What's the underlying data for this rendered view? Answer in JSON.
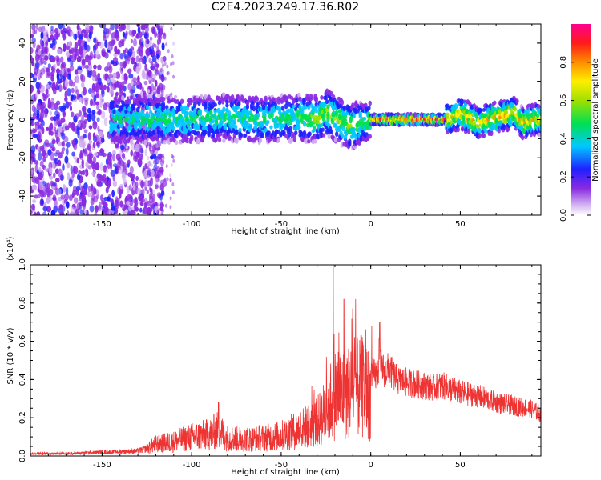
{
  "figure": {
    "title": "C2E4.2023.249.17.36.R02"
  },
  "chart_data": [
    {
      "type": "heatmap",
      "xlabel": "Height of straight line (km)",
      "ylabel": "Frequency (Hz)",
      "xlim": [
        -190,
        95
      ],
      "ylim": [
        -50,
        50
      ],
      "xticks": [
        -150,
        -100,
        -50,
        0,
        50
      ],
      "yticks": [
        -40,
        -20,
        0,
        20,
        40
      ],
      "colorbar": {
        "label": "Normalized spectral amplitude",
        "range": [
          0.0,
          1.0
        ],
        "ticks": [
          0.0,
          0.2,
          0.4,
          0.6,
          0.8
        ],
        "colormap": "rainbow: white-violet-blue-cyan-green-yellow-orange-red-magenta"
      },
      "ridge": {
        "x": [
          -145,
          -130,
          -120,
          -100,
          -80,
          -60,
          -40,
          -30,
          -25,
          -20,
          -15,
          -10,
          -5,
          0,
          10,
          20,
          30,
          40,
          45,
          50,
          55,
          60,
          65,
          70,
          75,
          80,
          85,
          90
        ],
        "y": [
          0,
          0,
          0,
          0,
          1,
          0,
          1,
          0,
          4,
          1,
          -2,
          -3,
          -2,
          0,
          0,
          0,
          0,
          0,
          1,
          3,
          1,
          -2,
          0,
          1,
          2,
          4,
          -2,
          0
        ]
      }
    },
    {
      "type": "line",
      "xlabel": "Height of straight line (km)",
      "ylabel": "SNR (10 * v/v)",
      "yscale_note": "(x10⁴)",
      "xlim": [
        -190,
        95
      ],
      "ylim": [
        0.0,
        1.0
      ],
      "xticks": [
        -150,
        -100,
        -50,
        0,
        50
      ],
      "yticks": [
        0.0,
        0.2,
        0.4,
        0.6,
        0.8,
        1.0
      ],
      "color": "#ee3333",
      "envelope": {
        "x": [
          -190,
          -170,
          -150,
          -130,
          -125,
          -120,
          -110,
          -100,
          -90,
          -85,
          -80,
          -70,
          -60,
          -50,
          -40,
          -30,
          -25,
          -21,
          -18,
          -15,
          -10,
          -5,
          0,
          3,
          5,
          8,
          10,
          15,
          20,
          25,
          30,
          35,
          40,
          50,
          60,
          70,
          80,
          90,
          95
        ],
        "y": [
          0.02,
          0.02,
          0.03,
          0.04,
          0.06,
          0.1,
          0.12,
          0.16,
          0.18,
          0.22,
          0.15,
          0.14,
          0.15,
          0.17,
          0.22,
          0.28,
          0.38,
          0.5,
          0.55,
          0.52,
          0.55,
          0.58,
          0.5,
          0.48,
          0.55,
          0.5,
          0.52,
          0.45,
          0.44,
          0.43,
          0.42,
          0.41,
          0.42,
          0.38,
          0.36,
          0.32,
          0.3,
          0.28,
          0.25
        ]
      },
      "peaks": [
        {
          "x": -21,
          "y": 1.0
        },
        {
          "x": -15,
          "y": 0.82
        },
        {
          "x": -10,
          "y": 0.77
        },
        {
          "x": 5,
          "y": 0.7
        },
        {
          "x": -85,
          "y": 0.28
        }
      ]
    }
  ]
}
